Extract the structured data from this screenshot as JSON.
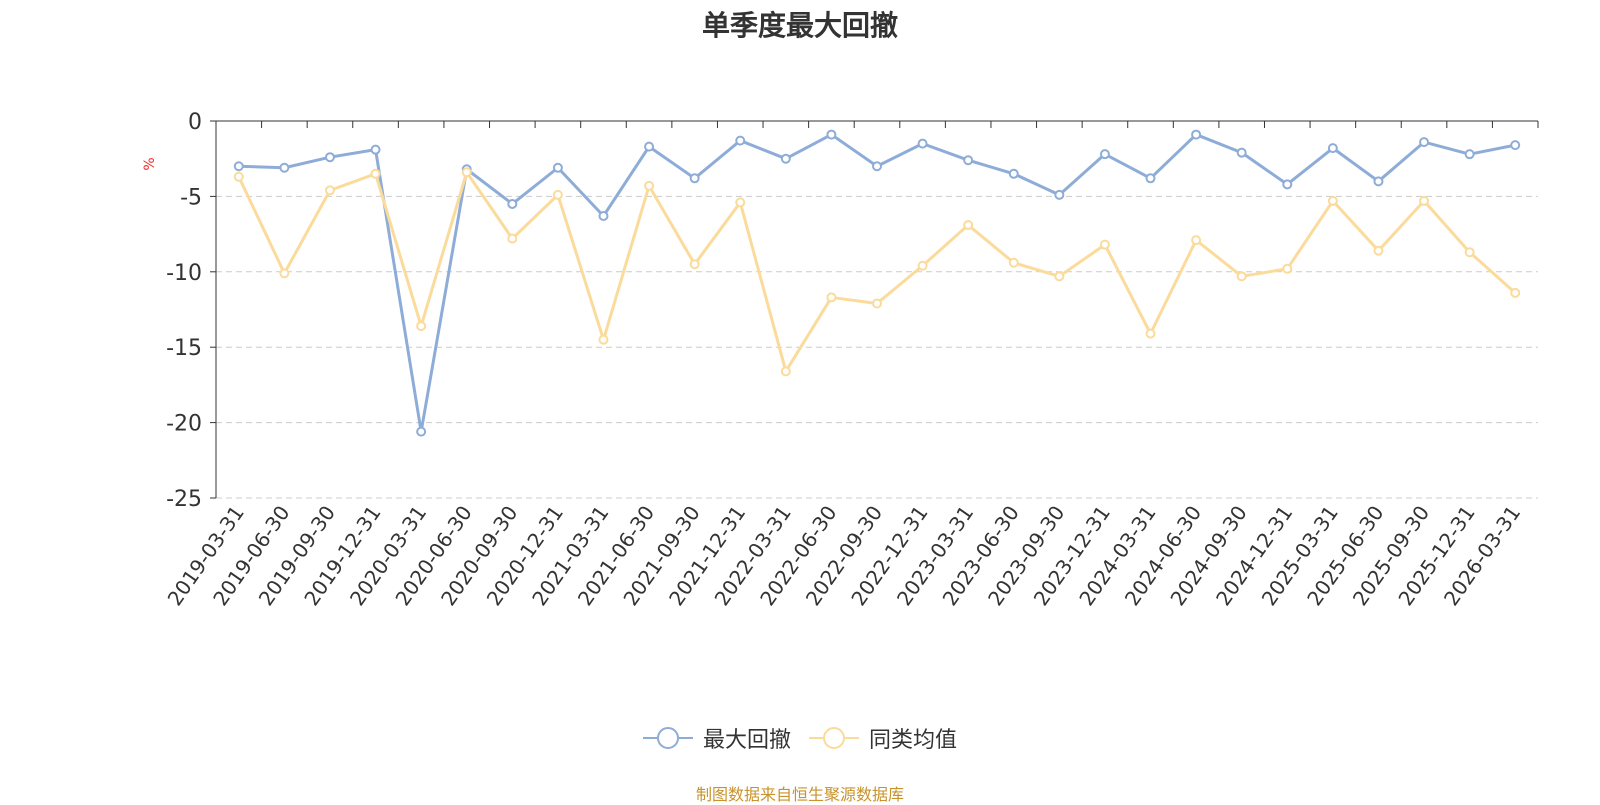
{
  "chart_data": {
    "type": "line",
    "title": "单季度最大回撤",
    "ylabel": "%",
    "ylim": [
      -25,
      0
    ],
    "yticks": [
      0,
      -5,
      -10,
      -15,
      -20,
      -25
    ],
    "categories": [
      "2019-03-31",
      "2019-06-30",
      "2019-09-30",
      "2019-12-31",
      "2020-03-31",
      "2020-06-30",
      "2020-09-30",
      "2020-12-31",
      "2021-03-31",
      "2021-06-30",
      "2021-09-30",
      "2021-12-31",
      "2022-03-31",
      "2022-06-30",
      "2022-09-30",
      "2022-12-31",
      "2023-03-31",
      "2023-06-30",
      "2023-09-30",
      "2023-12-31",
      "2024-03-31",
      "2024-06-30",
      "2024-09-30",
      "2024-12-31",
      "2025-03-31",
      "2025-06-30",
      "2025-09-30",
      "2025-12-31",
      "2026-03-31"
    ],
    "series": [
      {
        "name": "最大回撤",
        "color": "#8eacd8",
        "values": [
          -3.0,
          -3.1,
          -2.4,
          -1.9,
          -20.6,
          -3.2,
          -5.5,
          -3.1,
          -6.3,
          -1.7,
          -3.8,
          -1.3,
          -2.5,
          -0.9,
          -3.0,
          -1.5,
          -2.6,
          -3.5,
          -4.9,
          -2.2,
          -3.8,
          -0.9,
          -2.1,
          -4.2,
          -1.8,
          -4.0,
          -1.4,
          -2.2,
          -1.6
        ]
      },
      {
        "name": "同类均值",
        "color": "#fbdb9b",
        "values": [
          -3.7,
          -10.1,
          -4.6,
          -3.5,
          -13.6,
          -3.4,
          -7.8,
          -4.9,
          -14.5,
          -4.3,
          -9.5,
          -5.4,
          -16.6,
          -11.7,
          -12.1,
          -9.6,
          -6.9,
          -9.4,
          -10.3,
          -8.2,
          -14.1,
          -7.9,
          -10.3,
          -9.8,
          -5.3,
          -8.6,
          -5.3,
          -8.7,
          -11.4
        ]
      }
    ],
    "grid": true,
    "legend_position": "bottom-center"
  },
  "footer": {
    "source_text": "制图数据来自恒生聚源数据库"
  }
}
